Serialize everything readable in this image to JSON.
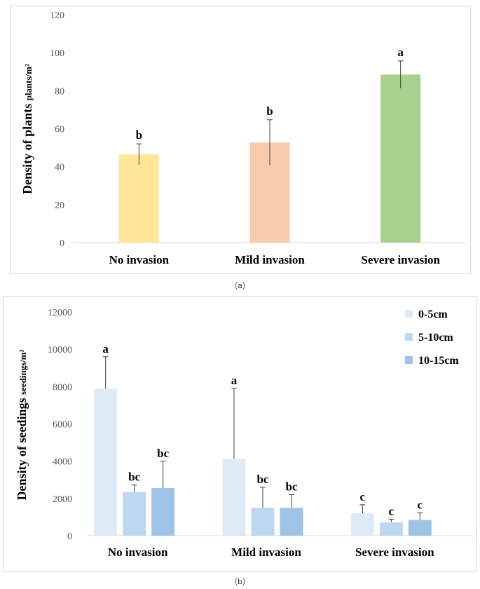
{
  "chart_data": [
    {
      "type": "bar",
      "panel_label": "（a）",
      "ylabel": "Density of plants",
      "ylabel_unit": "plants/m²",
      "ylim": [
        0,
        120
      ],
      "yticks": [
        0,
        20,
        40,
        60,
        80,
        100,
        120
      ],
      "grid": false,
      "categories": [
        "No invasion",
        "Mild invasion",
        "Severe invasion"
      ],
      "values": [
        46.5,
        52.7,
        88.5
      ],
      "errors": [
        5.5,
        12.0,
        7.2
      ],
      "significance": [
        "b",
        "b",
        "a"
      ],
      "colors": [
        "#ffe699",
        "#f8cbad",
        "#a9d18e"
      ]
    },
    {
      "type": "bar",
      "panel_label": "（b）",
      "ylabel": "Density of seedings",
      "ylabel_unit": "seedings/m²",
      "ylim": [
        0,
        12000
      ],
      "yticks": [
        0,
        2000,
        4000,
        6000,
        8000,
        10000,
        12000
      ],
      "grid": false,
      "legend_position": "top-right",
      "categories": [
        "No invasion",
        "Mild invasion",
        "Severe invasion"
      ],
      "series": [
        {
          "name": "0-5cm",
          "color": "#deebf7",
          "values": [
            7880,
            4120,
            1200
          ],
          "errors": [
            1720,
            3780,
            460
          ],
          "significance": [
            "a",
            "a",
            "c"
          ]
        },
        {
          "name": "5-10cm",
          "color": "#bdd7ee",
          "values": [
            2340,
            1500,
            720
          ],
          "errors": [
            380,
            1100,
            170
          ],
          "significance": [
            "bc",
            "bc",
            "c"
          ]
        },
        {
          "name": "10-15cm",
          "color": "#9dc3e6",
          "values": [
            2560,
            1500,
            850
          ],
          "errors": [
            1430,
            700,
            380
          ],
          "significance": [
            "bc",
            "bc",
            "c"
          ]
        }
      ]
    }
  ]
}
